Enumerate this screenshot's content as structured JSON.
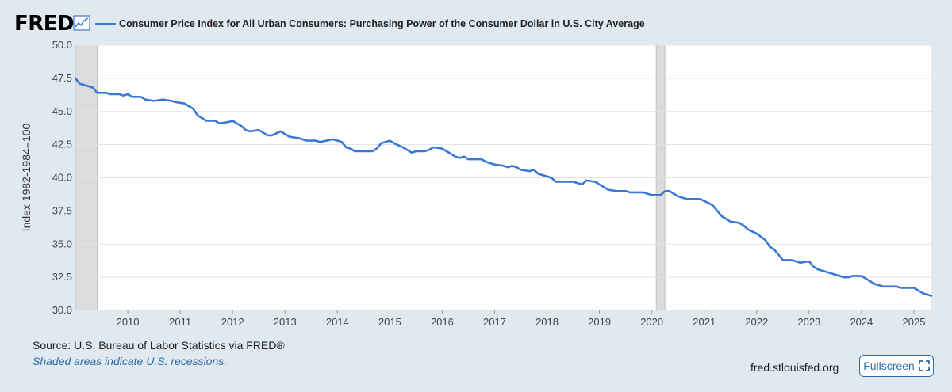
{
  "header": {
    "logo_text": "FRED",
    "logo_icon": "chart-line-icon",
    "legend_label": "Consumer Price Index for All Urban Consumers: Purchasing Power of the Consumer Dollar in U.S. City Average",
    "legend_color": "#3a78d8"
  },
  "footer": {
    "source": "Source: U.S. Bureau of Labor Statistics via FRED®",
    "recession_note": "Shaded areas indicate U.S. recessions.",
    "site": "fred.stlouisfed.org",
    "fullscreen_label": "Fullscreen",
    "fullscreen_icon": "fullscreen-icon"
  },
  "chart_data": {
    "type": "line",
    "title": "",
    "xlabel": "",
    "ylabel": "Index 1982-1984=100",
    "xlim": [
      "2009-01",
      "2025-05"
    ],
    "ylim": [
      30.0,
      50.0
    ],
    "y_ticks": [
      "30.0",
      "32.5",
      "35.0",
      "37.5",
      "40.0",
      "42.5",
      "45.0",
      "47.5",
      "50.0"
    ],
    "x_ticks": [
      "2010",
      "2011",
      "2012",
      "2013",
      "2014",
      "2015",
      "2016",
      "2017",
      "2018",
      "2019",
      "2020",
      "2021",
      "2022",
      "2023",
      "2024",
      "2025"
    ],
    "grid": true,
    "colors": {
      "line": "#3a78d8",
      "recession": "#dcdcdc",
      "plot_bg": "#ffffff",
      "grid": "#e3e3e3"
    },
    "recessions": [
      [
        "2009-01",
        "2009-06"
      ],
      [
        "2020-02",
        "2020-04"
      ]
    ],
    "series": [
      {
        "name": "Consumer Price Index for All Urban Consumers: Purchasing Power of the Consumer Dollar in U.S. City Average",
        "points": [
          [
            "2009-01",
            47.5
          ],
          [
            "2009-02",
            47.1
          ],
          [
            "2009-04",
            46.9
          ],
          [
            "2009-05",
            46.8
          ],
          [
            "2009-06",
            46.4
          ],
          [
            "2009-08",
            46.4
          ],
          [
            "2009-09",
            46.3
          ],
          [
            "2009-11",
            46.3
          ],
          [
            "2009-12",
            46.2
          ],
          [
            "2010-01",
            46.3
          ],
          [
            "2010-02",
            46.1
          ],
          [
            "2010-04",
            46.1
          ],
          [
            "2010-05",
            45.9
          ],
          [
            "2010-07",
            45.8
          ],
          [
            "2010-09",
            45.9
          ],
          [
            "2010-11",
            45.8
          ],
          [
            "2010-12",
            45.7
          ],
          [
            "2011-02",
            45.6
          ],
          [
            "2011-03",
            45.4
          ],
          [
            "2011-04",
            45.2
          ],
          [
            "2011-05",
            44.7
          ],
          [
            "2011-07",
            44.3
          ],
          [
            "2011-09",
            44.3
          ],
          [
            "2011-10",
            44.1
          ],
          [
            "2011-12",
            44.2
          ],
          [
            "2012-01",
            44.3
          ],
          [
            "2012-03",
            43.9
          ],
          [
            "2012-04",
            43.6
          ],
          [
            "2012-05",
            43.5
          ],
          [
            "2012-07",
            43.6
          ],
          [
            "2012-09",
            43.2
          ],
          [
            "2012-10",
            43.2
          ],
          [
            "2012-12",
            43.5
          ],
          [
            "2013-01",
            43.3
          ],
          [
            "2013-02",
            43.1
          ],
          [
            "2013-04",
            43.0
          ],
          [
            "2013-06",
            42.8
          ],
          [
            "2013-08",
            42.8
          ],
          [
            "2013-09",
            42.7
          ],
          [
            "2013-12",
            42.9
          ],
          [
            "2014-02",
            42.7
          ],
          [
            "2014-03",
            42.3
          ],
          [
            "2014-04",
            42.2
          ],
          [
            "2014-05",
            42.0
          ],
          [
            "2014-08",
            42.0
          ],
          [
            "2014-09",
            42.0
          ],
          [
            "2014-10",
            42.2
          ],
          [
            "2014-11",
            42.6
          ],
          [
            "2015-01",
            42.8
          ],
          [
            "2015-02",
            42.6
          ],
          [
            "2015-04",
            42.3
          ],
          [
            "2015-06",
            41.9
          ],
          [
            "2015-07",
            42.0
          ],
          [
            "2015-09",
            42.0
          ],
          [
            "2015-10",
            42.1
          ],
          [
            "2015-11",
            42.3
          ],
          [
            "2016-01",
            42.2
          ],
          [
            "2016-02",
            42.0
          ],
          [
            "2016-04",
            41.6
          ],
          [
            "2016-05",
            41.5
          ],
          [
            "2016-06",
            41.6
          ],
          [
            "2016-07",
            41.4
          ],
          [
            "2016-10",
            41.4
          ],
          [
            "2016-11",
            41.2
          ],
          [
            "2017-01",
            41.0
          ],
          [
            "2017-03",
            40.9
          ],
          [
            "2017-04",
            40.8
          ],
          [
            "2017-05",
            40.9
          ],
          [
            "2017-06",
            40.8
          ],
          [
            "2017-07",
            40.6
          ],
          [
            "2017-09",
            40.5
          ],
          [
            "2017-10",
            40.6
          ],
          [
            "2017-11",
            40.3
          ],
          [
            "2018-01",
            40.1
          ],
          [
            "2018-02",
            40.0
          ],
          [
            "2018-03",
            39.7
          ],
          [
            "2018-07",
            39.7
          ],
          [
            "2018-09",
            39.5
          ],
          [
            "2018-10",
            39.8
          ],
          [
            "2018-12",
            39.7
          ],
          [
            "2019-02",
            39.3
          ],
          [
            "2019-03",
            39.1
          ],
          [
            "2019-05",
            39.0
          ],
          [
            "2019-07",
            39.0
          ],
          [
            "2019-08",
            38.9
          ],
          [
            "2019-11",
            38.9
          ],
          [
            "2019-12",
            38.8
          ],
          [
            "2020-01",
            38.7
          ],
          [
            "2020-03",
            38.7
          ],
          [
            "2020-04",
            39.0
          ],
          [
            "2020-05",
            39.0
          ],
          [
            "2020-07",
            38.6
          ],
          [
            "2020-09",
            38.4
          ],
          [
            "2020-12",
            38.4
          ],
          [
            "2021-02",
            38.1
          ],
          [
            "2021-03",
            37.9
          ],
          [
            "2021-04",
            37.5
          ],
          [
            "2021-05",
            37.1
          ],
          [
            "2021-06",
            36.9
          ],
          [
            "2021-07",
            36.7
          ],
          [
            "2021-09",
            36.6
          ],
          [
            "2021-10",
            36.4
          ],
          [
            "2021-11",
            36.1
          ],
          [
            "2022-01",
            35.8
          ],
          [
            "2022-03",
            35.3
          ],
          [
            "2022-04",
            34.8
          ],
          [
            "2022-05",
            34.6
          ],
          [
            "2022-06",
            34.2
          ],
          [
            "2022-07",
            33.8
          ],
          [
            "2022-09",
            33.8
          ],
          [
            "2022-10",
            33.7
          ],
          [
            "2022-11",
            33.6
          ],
          [
            "2023-01",
            33.7
          ],
          [
            "2023-02",
            33.3
          ],
          [
            "2023-03",
            33.1
          ],
          [
            "2023-06",
            32.8
          ],
          [
            "2023-09",
            32.5
          ],
          [
            "2023-10",
            32.5
          ],
          [
            "2023-11",
            32.6
          ],
          [
            "2024-01",
            32.6
          ],
          [
            "2024-02",
            32.4
          ],
          [
            "2024-04",
            32.0
          ],
          [
            "2024-06",
            31.8
          ],
          [
            "2024-09",
            31.8
          ],
          [
            "2024-10",
            31.7
          ],
          [
            "2025-01",
            31.7
          ],
          [
            "2025-03",
            31.3
          ],
          [
            "2025-04",
            31.2
          ],
          [
            "2025-05",
            31.1
          ]
        ]
      }
    ]
  }
}
